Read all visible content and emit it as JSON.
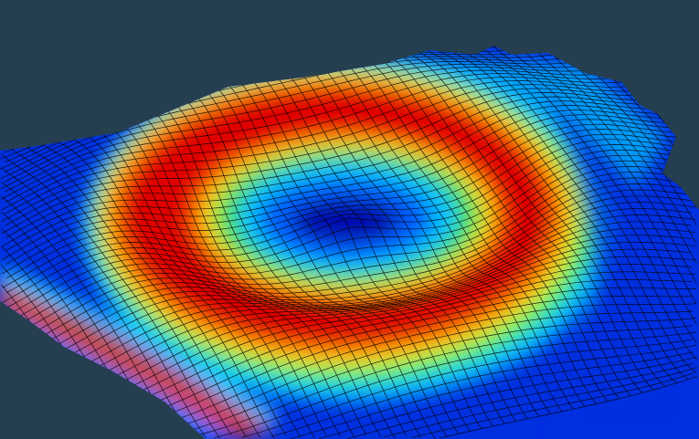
{
  "viewport": {
    "background_color": "#253f51",
    "mesh_line_color": "#000000",
    "contour_colors": [
      "#0018c8",
      "#0060ff",
      "#00c8ff",
      "#00e070",
      "#a0f000",
      "#f0e000",
      "#ff8000",
      "#ff3000",
      "#d00000"
    ]
  }
}
